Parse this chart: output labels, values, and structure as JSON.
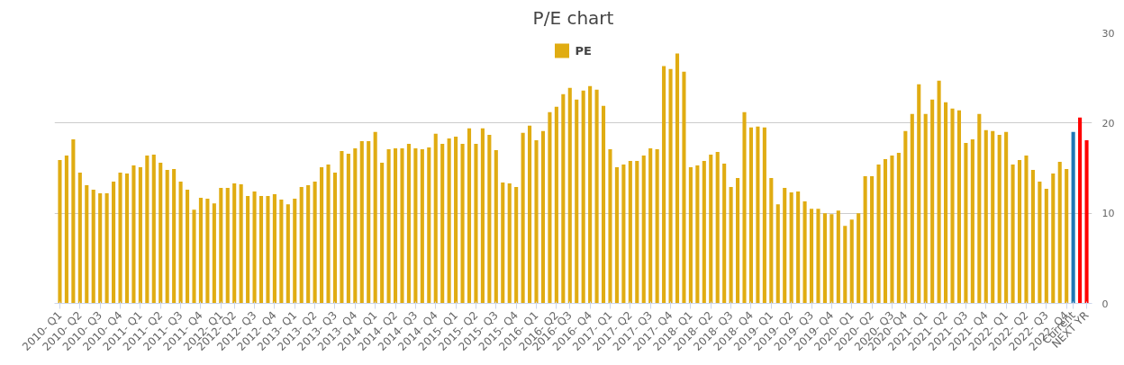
{
  "chart_data": {
    "type": "bar",
    "title": "P/E chart",
    "categories": [
      "2010- Q1",
      null,
      null,
      "2010- Q2",
      null,
      null,
      "2010- Q3",
      null,
      null,
      "2010- Q4",
      null,
      null,
      "2011- Q1",
      null,
      null,
      "2011- Q2",
      null,
      null,
      "2011- Q3",
      null,
      null,
      "2011- Q4",
      null,
      null,
      "2012- Q1",
      null,
      "2012- Q2",
      null,
      null,
      "2012- Q3",
      null,
      null,
      "2012- Q4",
      null,
      null,
      "2013- Q1",
      null,
      null,
      "2013- Q2",
      null,
      null,
      "2013- Q3",
      null,
      null,
      "2013- Q4",
      null,
      null,
      "2014- Q1",
      null,
      null,
      "2014- Q2",
      null,
      null,
      "2014- Q3",
      null,
      null,
      "2014- Q4",
      null,
      null,
      "2015- Q1",
      null,
      null,
      "2015- Q2",
      null,
      null,
      "2015- Q3",
      null,
      null,
      "2015- Q4",
      null,
      null,
      "2016- Q1",
      null,
      null,
      "2016- Q2",
      null,
      "2016- Q3",
      null,
      null,
      "2016- Q4",
      null,
      null,
      "2017- Q1",
      null,
      null,
      "2017- Q2",
      null,
      null,
      "2017- Q3",
      null,
      null,
      "2017- Q4",
      null,
      null,
      "2018- Q1",
      null,
      null,
      "2018- Q2",
      null,
      null,
      "2018- Q3",
      null,
      null,
      "2018- Q4",
      null,
      null,
      "2019- Q1",
      null,
      null,
      "2019- Q2",
      null,
      null,
      "2019- Q3",
      null,
      null,
      "2019- Q4",
      null,
      null,
      "2020- Q1",
      null,
      null,
      "2020- Q2",
      null,
      null,
      "2020- Q3",
      null,
      "2020- Q4",
      null,
      null,
      "2021- Q1",
      null,
      null,
      "2021- Q2",
      null,
      null,
      "2021- Q3",
      null,
      null,
      "2021- Q4",
      null,
      null,
      "2022- Q1",
      null,
      null,
      "2022- Q2",
      null,
      null,
      "2022- Q3",
      null,
      null,
      "2022- Q4",
      "Current",
      null,
      "NEXT YR"
    ],
    "series": [
      {
        "name": "PE",
        "color": "#e0ac12",
        "values": [
          15.9,
          16.4,
          18.2,
          14.5,
          13.1,
          12.6,
          12.2,
          12.2,
          13.5,
          14.5,
          14.4,
          15.3,
          15.1,
          16.4,
          16.5,
          15.6,
          14.8,
          14.9,
          13.5,
          12.6,
          10.4,
          11.7,
          11.6,
          11.1,
          12.8,
          12.8,
          13.3,
          13.2,
          11.9,
          12.4,
          11.9,
          11.9,
          12.1,
          11.5,
          11.0,
          11.6,
          12.9,
          13.1,
          13.5,
          15.1,
          15.4,
          14.5,
          16.9,
          16.6,
          17.2,
          18.0,
          18.0,
          19.0,
          15.6,
          17.1,
          17.2,
          17.2,
          17.7,
          17.2,
          17.1,
          17.3,
          18.8,
          17.7,
          18.3,
          18.5,
          17.7,
          19.4,
          17.7,
          19.4,
          18.7,
          17.0,
          13.4,
          13.3,
          12.9,
          18.9,
          19.7,
          18.1,
          19.1,
          21.2,
          21.8,
          23.2,
          23.9,
          22.6,
          23.6,
          24.1,
          23.7,
          21.9,
          17.1,
          15.1,
          15.4,
          15.8,
          15.8,
          16.4,
          17.2,
          17.1,
          26.3,
          26.0,
          27.7,
          25.7,
          15.1,
          15.3,
          15.8,
          16.5,
          16.8,
          15.5,
          12.9,
          13.9,
          21.2,
          19.5,
          19.6,
          19.5,
          13.9,
          11.0,
          12.8,
          12.3,
          12.4,
          11.3,
          10.5,
          10.5,
          10.0,
          9.9,
          10.3,
          8.6,
          9.3,
          10.0,
          14.1,
          14.1,
          15.4,
          16.0,
          16.4,
          16.7,
          19.1,
          21.0,
          24.3,
          21.0,
          22.6,
          24.7,
          22.3,
          21.6,
          21.4,
          17.8,
          18.2,
          21.0,
          19.2,
          19.1,
          18.7,
          19.0,
          15.4,
          15.9,
          16.4,
          14.8,
          13.5,
          12.7,
          14.4,
          15.7,
          14.9,
          null,
          null,
          null
        ]
      },
      {
        "color": "#1f77b4",
        "values": [
          null,
          null,
          null,
          null,
          null,
          null,
          null,
          null,
          null,
          null,
          null,
          null,
          null,
          null,
          null,
          null,
          null,
          null,
          null,
          null,
          null,
          null,
          null,
          null,
          null,
          null,
          null,
          null,
          null,
          null,
          null,
          null,
          null,
          null,
          null,
          null,
          null,
          null,
          null,
          null,
          null,
          null,
          null,
          null,
          null,
          null,
          null,
          null,
          null,
          null,
          null,
          null,
          null,
          null,
          null,
          null,
          null,
          null,
          null,
          null,
          null,
          null,
          null,
          null,
          null,
          null,
          null,
          null,
          null,
          null,
          null,
          null,
          null,
          null,
          null,
          null,
          null,
          null,
          null,
          null,
          null,
          null,
          null,
          null,
          null,
          null,
          null,
          null,
          null,
          null,
          null,
          null,
          null,
          null,
          null,
          null,
          null,
          null,
          null,
          null,
          null,
          null,
          null,
          null,
          null,
          null,
          null,
          null,
          null,
          null,
          null,
          null,
          null,
          null,
          null,
          null,
          null,
          null,
          null,
          null,
          null,
          null,
          null,
          null,
          null,
          null,
          null,
          null,
          null,
          null,
          null,
          null,
          null,
          null,
          null,
          null,
          null,
          null,
          null,
          null,
          null,
          null,
          null,
          null,
          null,
          null,
          null,
          null,
          null,
          null,
          null,
          19.0,
          null,
          null
        ]
      },
      {
        "color": "#ff0000",
        "values": [
          null,
          null,
          null,
          null,
          null,
          null,
          null,
          null,
          null,
          null,
          null,
          null,
          null,
          null,
          null,
          null,
          null,
          null,
          null,
          null,
          null,
          null,
          null,
          null,
          null,
          null,
          null,
          null,
          null,
          null,
          null,
          null,
          null,
          null,
          null,
          null,
          null,
          null,
          null,
          null,
          null,
          null,
          null,
          null,
          null,
          null,
          null,
          null,
          null,
          null,
          null,
          null,
          null,
          null,
          null,
          null,
          null,
          null,
          null,
          null,
          null,
          null,
          null,
          null,
          null,
          null,
          null,
          null,
          null,
          null,
          null,
          null,
          null,
          null,
          null,
          null,
          null,
          null,
          null,
          null,
          null,
          null,
          null,
          null,
          null,
          null,
          null,
          null,
          null,
          null,
          null,
          null,
          null,
          null,
          null,
          null,
          null,
          null,
          null,
          null,
          null,
          null,
          null,
          null,
          null,
          null,
          null,
          null,
          null,
          null,
          null,
          null,
          null,
          null,
          null,
          null,
          null,
          null,
          null,
          null,
          null,
          null,
          null,
          null,
          null,
          null,
          null,
          null,
          null,
          null,
          null,
          null,
          null,
          null,
          null,
          null,
          null,
          null,
          null,
          null,
          null,
          null,
          null,
          null,
          null,
          null,
          null,
          null,
          null,
          null,
          null,
          null,
          20.6,
          18.1
        ]
      }
    ],
    "ylim": [
      0,
      30
    ],
    "yticks": [
      0,
      10,
      20,
      30
    ],
    "grid": "y",
    "legend": "top"
  }
}
